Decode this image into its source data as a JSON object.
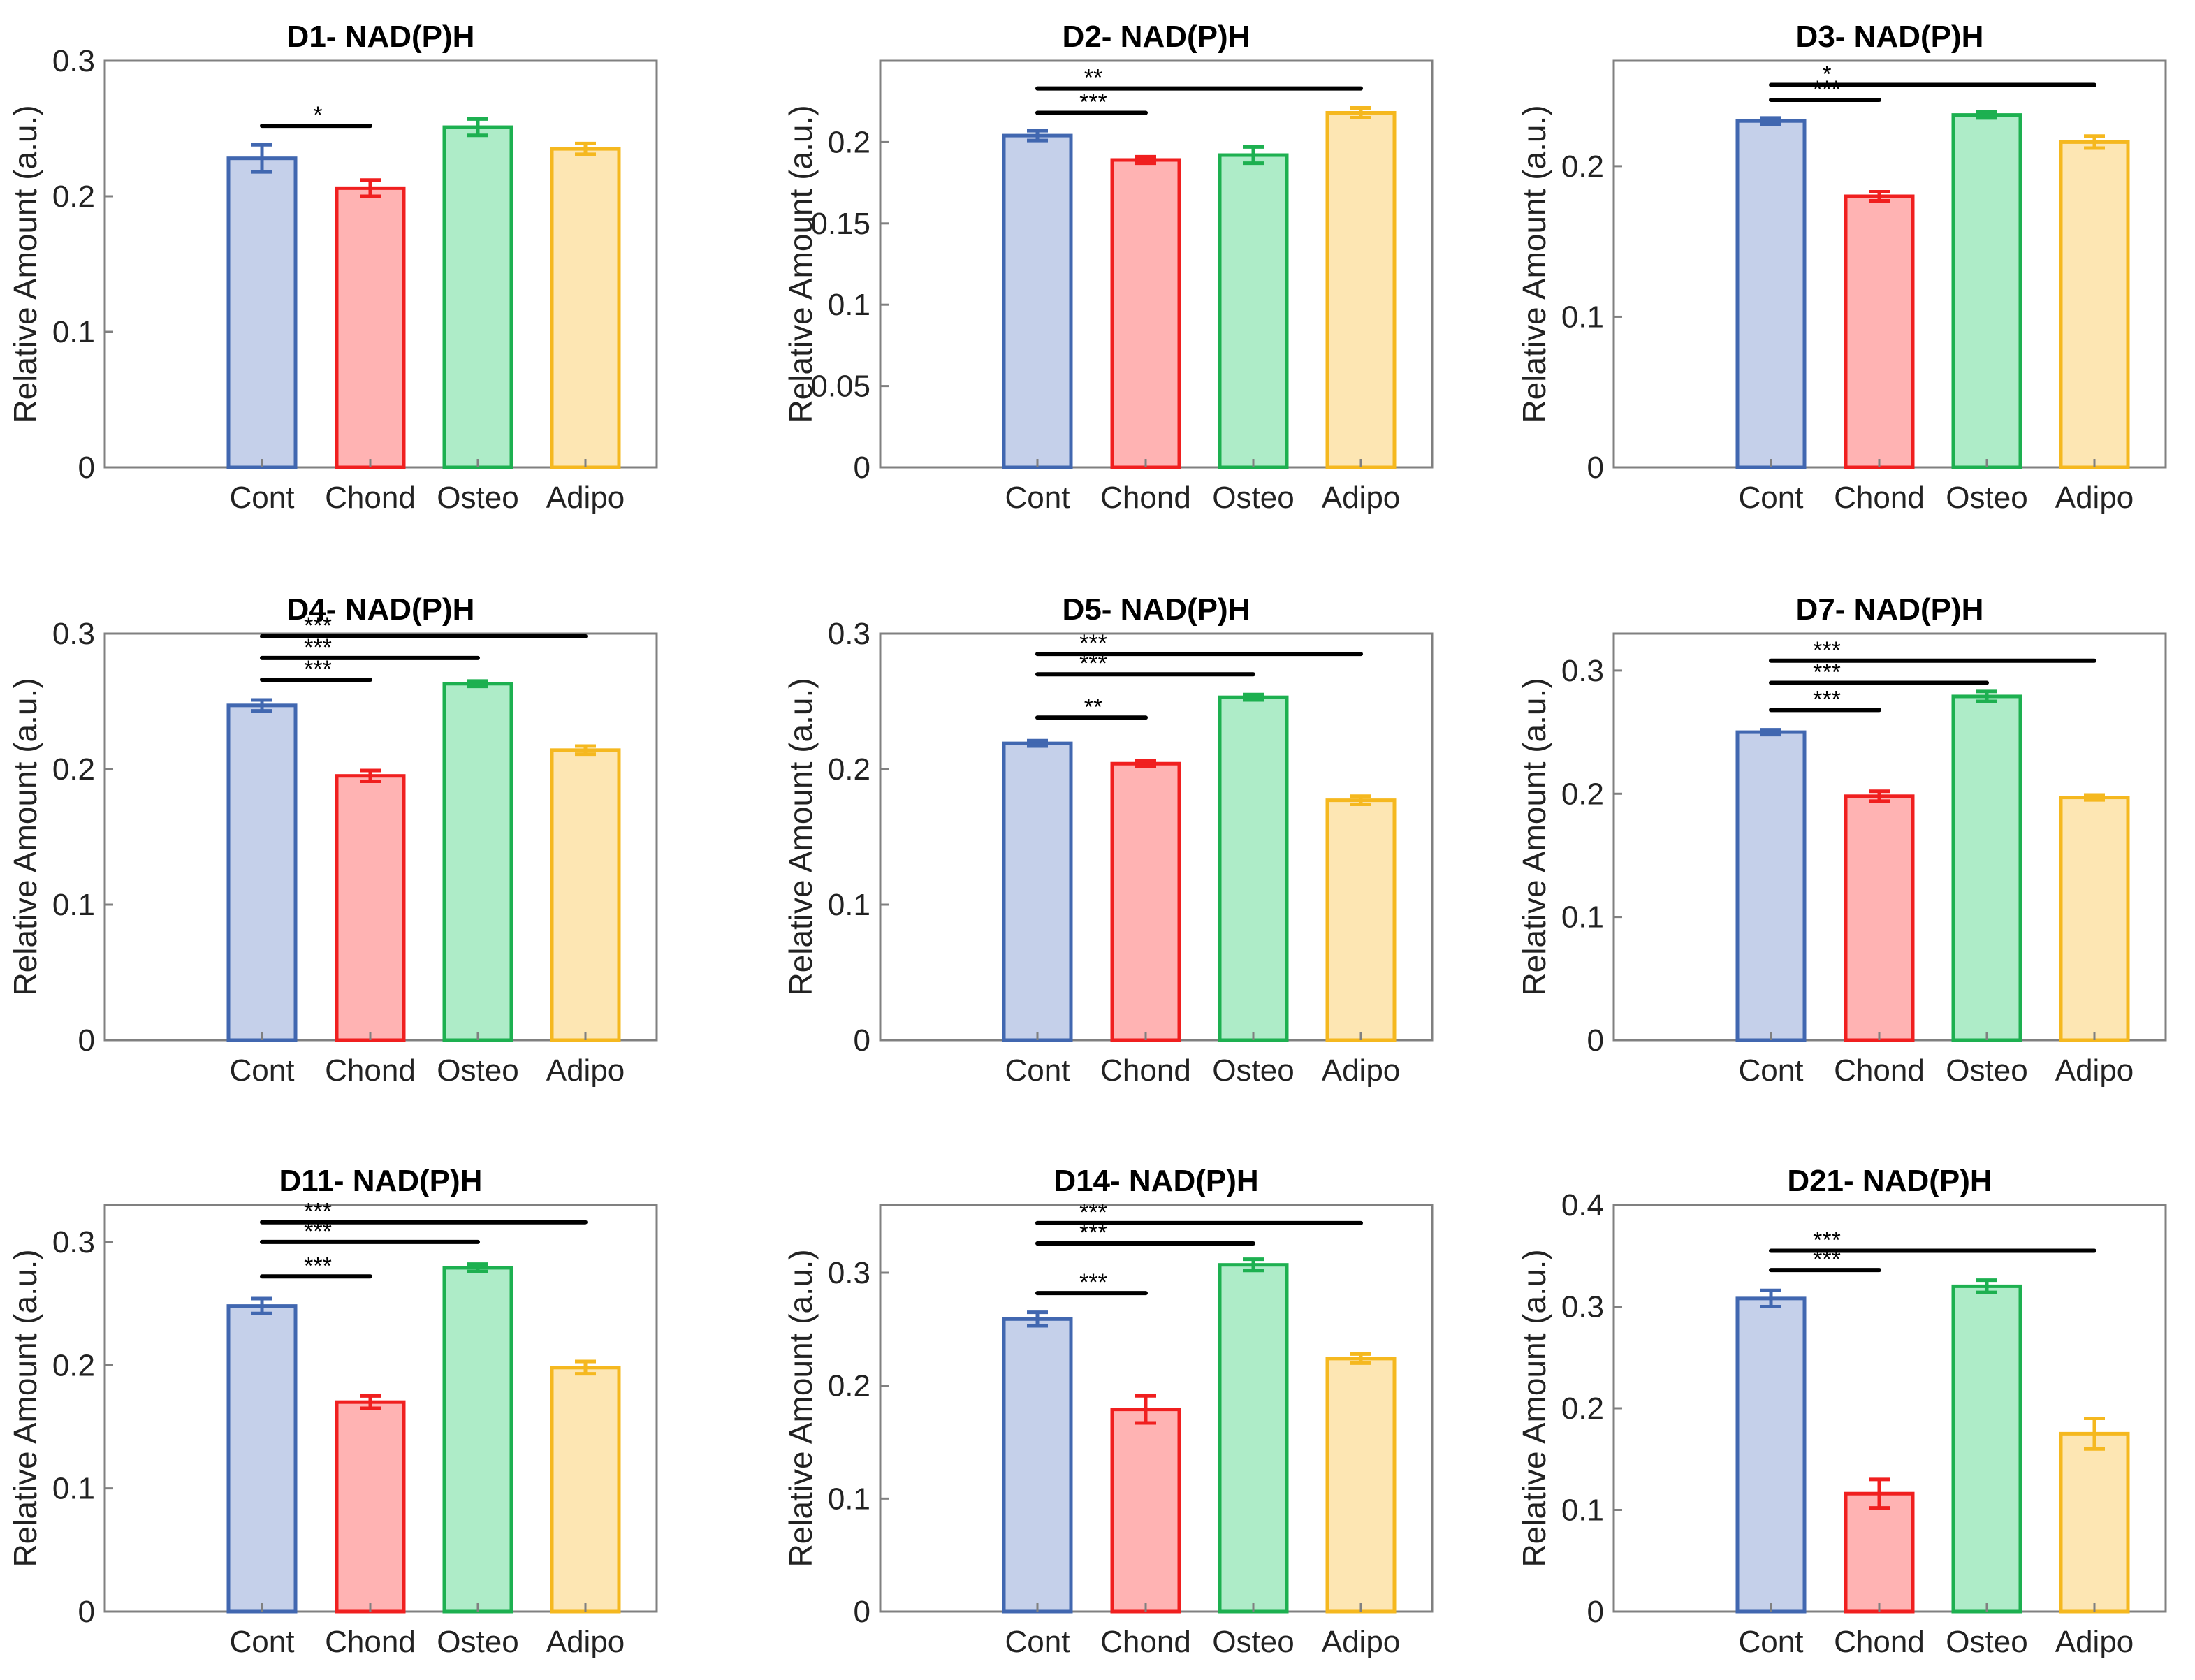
{
  "chart_data": [
    {
      "type": "bar",
      "title": "D1- NAD(P)H",
      "ylabel": "Relative Amount (a.u.)",
      "xlabel": "",
      "categories": [
        "Cont",
        "Chond",
        "Osteo",
        "Adipo"
      ],
      "values": [
        0.228,
        0.206,
        0.251,
        0.235
      ],
      "errors": [
        0.01,
        0.006,
        0.006,
        0.004
      ],
      "ylim": [
        0,
        0.3
      ],
      "yticks": [
        0,
        0.1,
        0.2,
        0.3
      ],
      "ytick_labels": [
        "0",
        "0.1",
        "0.2",
        "0.3"
      ],
      "significance": [
        {
          "from": "Cont",
          "to": "Chond",
          "label": "*",
          "y": 0.252
        }
      ]
    },
    {
      "type": "bar",
      "title": "D2- NAD(P)H",
      "ylabel": "Relative Amount (a.u.)",
      "xlabel": "",
      "categories": [
        "Cont",
        "Chond",
        "Osteo",
        "Adipo"
      ],
      "values": [
        0.204,
        0.189,
        0.192,
        0.218
      ],
      "errors": [
        0.003,
        0.002,
        0.005,
        0.003
      ],
      "ylim": [
        0,
        0.25
      ],
      "yticks": [
        0,
        0.05,
        0.1,
        0.15,
        0.2
      ],
      "ytick_labels": [
        "0",
        "0.05",
        "0.1",
        "0.15",
        "0.2"
      ],
      "significance": [
        {
          "from": "Cont",
          "to": "Chond",
          "label": "***",
          "y": 0.218
        },
        {
          "from": "Cont",
          "to": "Adipo",
          "label": "**",
          "y": 0.233
        }
      ]
    },
    {
      "type": "bar",
      "title": "D3- NAD(P)H",
      "ylabel": "Relative Amount (a.u.)",
      "xlabel": "",
      "categories": [
        "Cont",
        "Chond",
        "Osteo",
        "Adipo"
      ],
      "values": [
        0.23,
        0.18,
        0.234,
        0.216
      ],
      "errors": [
        0.002,
        0.003,
        0.002,
        0.004
      ],
      "ylim": [
        0,
        0.27
      ],
      "yticks": [
        0,
        0.1,
        0.2
      ],
      "ytick_labels": [
        "0",
        "0.1",
        "0.2"
      ],
      "significance": [
        {
          "from": "Cont",
          "to": "Chond",
          "label": "***",
          "y": 0.244
        },
        {
          "from": "Cont",
          "to": "Adipo",
          "label": "*",
          "y": 0.254
        }
      ]
    },
    {
      "type": "bar",
      "title": "D4- NAD(P)H",
      "ylabel": "Relative Amount (a.u.)",
      "xlabel": "",
      "categories": [
        "Cont",
        "Chond",
        "Osteo",
        "Adipo"
      ],
      "values": [
        0.247,
        0.195,
        0.263,
        0.214
      ],
      "errors": [
        0.004,
        0.004,
        0.002,
        0.003
      ],
      "ylim": [
        0,
        0.3
      ],
      "yticks": [
        0,
        0.1,
        0.2,
        0.3
      ],
      "ytick_labels": [
        "0",
        "0.1",
        "0.2",
        "0.3"
      ],
      "significance": [
        {
          "from": "Cont",
          "to": "Chond",
          "label": "***",
          "y": 0.266
        },
        {
          "from": "Cont",
          "to": "Osteo",
          "label": "***",
          "y": 0.282
        },
        {
          "from": "Cont",
          "to": "Adipo",
          "label": "***",
          "y": 0.298
        }
      ]
    },
    {
      "type": "bar",
      "title": "D5- NAD(P)H",
      "ylabel": "Relative Amount (a.u.)",
      "xlabel": "",
      "categories": [
        "Cont",
        "Chond",
        "Osteo",
        "Adipo"
      ],
      "values": [
        0.219,
        0.204,
        0.253,
        0.177
      ],
      "errors": [
        0.002,
        0.002,
        0.002,
        0.003
      ],
      "ylim": [
        0,
        0.3
      ],
      "yticks": [
        0,
        0.1,
        0.2,
        0.3
      ],
      "ytick_labels": [
        "0",
        "0.1",
        "0.2",
        "0.3"
      ],
      "significance": [
        {
          "from": "Cont",
          "to": "Chond",
          "label": "**",
          "y": 0.238
        },
        {
          "from": "Cont",
          "to": "Osteo",
          "label": "***",
          "y": 0.27
        },
        {
          "from": "Cont",
          "to": "Adipo",
          "label": "***",
          "y": 0.285
        }
      ]
    },
    {
      "type": "bar",
      "title": "D7- NAD(P)H",
      "ylabel": "Relative Amount (a.u.)",
      "xlabel": "",
      "categories": [
        "Cont",
        "Chond",
        "Osteo",
        "Adipo"
      ],
      "values": [
        0.25,
        0.198,
        0.279,
        0.197
      ],
      "errors": [
        0.002,
        0.004,
        0.004,
        0.002
      ],
      "ylim": [
        0,
        0.33
      ],
      "yticks": [
        0,
        0.1,
        0.2,
        0.3
      ],
      "ytick_labels": [
        "0",
        "0.1",
        "0.2",
        "0.3"
      ],
      "significance": [
        {
          "from": "Cont",
          "to": "Chond",
          "label": "***",
          "y": 0.268
        },
        {
          "from": "Cont",
          "to": "Osteo",
          "label": "***",
          "y": 0.29
        },
        {
          "from": "Cont",
          "to": "Adipo",
          "label": "***",
          "y": 0.308
        }
      ]
    },
    {
      "type": "bar",
      "title": "D11- NAD(P)H",
      "ylabel": "Relative Amount (a.u.)",
      "xlabel": "",
      "categories": [
        "Cont",
        "Chond",
        "Osteo",
        "Adipo"
      ],
      "values": [
        0.248,
        0.17,
        0.279,
        0.198
      ],
      "errors": [
        0.006,
        0.005,
        0.003,
        0.005
      ],
      "ylim": [
        0,
        0.33
      ],
      "yticks": [
        0,
        0.1,
        0.2,
        0.3
      ],
      "ytick_labels": [
        "0",
        "0.1",
        "0.2",
        "0.3"
      ],
      "significance": [
        {
          "from": "Cont",
          "to": "Chond",
          "label": "***",
          "y": 0.272
        },
        {
          "from": "Cont",
          "to": "Osteo",
          "label": "***",
          "y": 0.3
        },
        {
          "from": "Cont",
          "to": "Adipo",
          "label": "***",
          "y": 0.316
        }
      ]
    },
    {
      "type": "bar",
      "title": "D14- NAD(P)H",
      "ylabel": "Relative Amount (a.u.)",
      "xlabel": "",
      "categories": [
        "Cont",
        "Chond",
        "Osteo",
        "Adipo"
      ],
      "values": [
        0.259,
        0.179,
        0.307,
        0.224
      ],
      "errors": [
        0.006,
        0.012,
        0.005,
        0.004
      ],
      "ylim": [
        0,
        0.36
      ],
      "yticks": [
        0,
        0.1,
        0.2,
        0.3
      ],
      "ytick_labels": [
        "0",
        "0.1",
        "0.2",
        "0.3"
      ],
      "significance": [
        {
          "from": "Cont",
          "to": "Chond",
          "label": "***",
          "y": 0.282
        },
        {
          "from": "Cont",
          "to": "Osteo",
          "label": "***",
          "y": 0.326
        },
        {
          "from": "Cont",
          "to": "Adipo",
          "label": "***",
          "y": 0.344
        }
      ]
    },
    {
      "type": "bar",
      "title": "D21- NAD(P)H",
      "ylabel": "Relative Amount (a.u.)",
      "xlabel": "",
      "categories": [
        "Cont",
        "Chond",
        "Osteo",
        "Adipo"
      ],
      "values": [
        0.308,
        0.116,
        0.32,
        0.175
      ],
      "errors": [
        0.008,
        0.014,
        0.006,
        0.015
      ],
      "ylim": [
        0,
        0.4
      ],
      "yticks": [
        0,
        0.1,
        0.2,
        0.3,
        0.4
      ],
      "ytick_labels": [
        "0",
        "0.1",
        "0.2",
        "0.3",
        "0.4"
      ],
      "significance": [
        {
          "from": "Cont",
          "to": "Chond",
          "label": "***",
          "y": 0.336
        },
        {
          "from": "Cont",
          "to": "Adipo",
          "label": "***",
          "y": 0.355
        }
      ]
    }
  ],
  "colors": {
    "series_stroke": [
      "#4167b0",
      "#f01f1f",
      "#1db050",
      "#f5b81f"
    ],
    "series_fill": [
      "#c5d0ea",
      "#ffb3b3",
      "#aeecc8",
      "#fde6b3"
    ],
    "axis": "#808080",
    "bracket": "#000000"
  }
}
